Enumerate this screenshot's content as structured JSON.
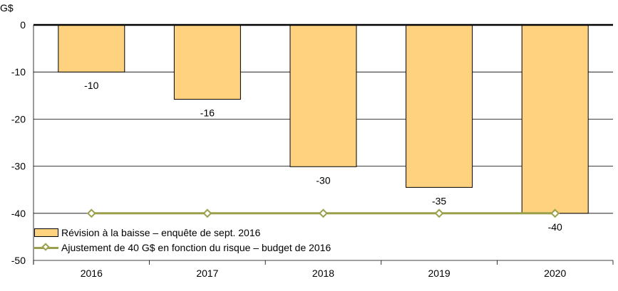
{
  "chart_data": {
    "type": "bar",
    "yunit": "G$",
    "categories": [
      "2016",
      "2017",
      "2018",
      "2019",
      "2020"
    ],
    "series": [
      {
        "name": "Révision à la baisse – enquête de sept. 2016",
        "type": "bar",
        "values": [
          -10,
          -15.8,
          -30.1,
          -34.5,
          -40
        ],
        "labels": [
          "-10",
          "-16",
          "-30",
          "-35",
          "-40"
        ],
        "color": "#FFD27F"
      },
      {
        "name": "Ajustement de 40 G$ en fonction du risque – budget de 2016",
        "type": "line",
        "values": [
          -40,
          -40,
          -40,
          -40,
          -40
        ],
        "color": "#9AA04A"
      }
    ],
    "ylim": [
      -50,
      0
    ],
    "yticks": [
      0,
      -10,
      -20,
      -30,
      -40,
      -50
    ],
    "ytick_labels": [
      "0",
      "-10",
      "-20",
      "-30",
      "-40",
      "-50"
    ],
    "grid": true,
    "legend_position": "bottom-left"
  }
}
